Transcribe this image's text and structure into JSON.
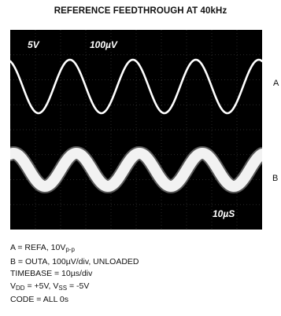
{
  "chart_data": {
    "type": "line",
    "title": "REFERENCE FEEDTHROUGH AT 40kHz",
    "scope_annotations": {
      "ch_a_scale": "5V",
      "ch_b_scale": "100µV",
      "timebase": "10µS"
    },
    "channel_labels": [
      "A",
      "B"
    ],
    "frequency_khz": 40,
    "timebase_us_per_div": 10,
    "grid_divisions": {
      "x": 10,
      "y": 8
    },
    "series": [
      {
        "name": "A",
        "type": "sine",
        "amplitude_vpp": 10,
        "cycles_on_screen": 4,
        "color": "#ffffff"
      },
      {
        "name": "B",
        "type": "sine",
        "amplitude_uv_per_div": 100,
        "cycles_on_screen": 4,
        "color": "#ffffff"
      }
    ]
  },
  "legend": {
    "line1": "A = REFA, 10V",
    "line1_sub": "p-p",
    "line2": "B = OUTA, 100µV/div, UNLOADED",
    "line3": "TIMEBASE = 10µs/div",
    "line4_a": "V",
    "line4_a_sub": "DD",
    "line4_b": " = +5V, V",
    "line4_b_sub": "SS",
    "line4_c": " = -5V",
    "line5": "CODE = ALL 0s"
  },
  "colors": {
    "screen": "#000000",
    "trace": "#ffffff",
    "grid": "#3a3a3a"
  }
}
